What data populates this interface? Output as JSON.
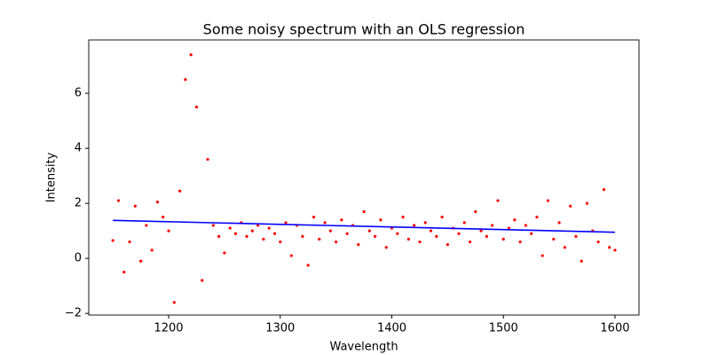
{
  "chart_data": {
    "type": "scatter",
    "title": "Some noisy spectrum with an OLS regression",
    "xlabel": "Wavelength",
    "ylabel": "Intensity",
    "xlim": [
      1128.4,
      1621.5
    ],
    "ylim": [
      -2.06,
      7.94
    ],
    "xticks": [
      1200,
      1300,
      1400,
      1500,
      1600
    ],
    "yticks": [
      {
        "value": -2,
        "label": "−2"
      },
      0,
      2,
      4,
      6
    ],
    "series": [
      {
        "type": "scatter",
        "color": "#ff0000",
        "x": [
          1150,
          1155,
          1160,
          1165,
          1170,
          1175,
          1180,
          1185,
          1190,
          1195,
          1200,
          1205,
          1210,
          1215,
          1220,
          1225,
          1230,
          1235,
          1240,
          1245,
          1250,
          1255,
          1260,
          1265,
          1270,
          1275,
          1280,
          1285,
          1290,
          1295,
          1300,
          1305,
          1310,
          1315,
          1320,
          1325,
          1330,
          1335,
          1340,
          1345,
          1350,
          1355,
          1360,
          1365,
          1370,
          1375,
          1380,
          1385,
          1390,
          1395,
          1400,
          1405,
          1410,
          1415,
          1420,
          1425,
          1430,
          1435,
          1440,
          1445,
          1450,
          1455,
          1460,
          1465,
          1470,
          1475,
          1480,
          1485,
          1490,
          1495,
          1500,
          1505,
          1510,
          1515,
          1520,
          1525,
          1530,
          1535,
          1540,
          1545,
          1550,
          1555,
          1560,
          1565,
          1570,
          1575,
          1580,
          1585,
          1590,
          1595,
          1600
        ],
        "values": [
          0.65,
          2.1,
          -0.5,
          0.6,
          1.9,
          -0.1,
          1.2,
          0.3,
          2.05,
          1.5,
          1.0,
          -1.6,
          2.45,
          6.5,
          7.4,
          5.5,
          -0.8,
          3.6,
          1.2,
          0.8,
          0.2,
          1.1,
          0.9,
          1.3,
          0.8,
          1.0,
          1.2,
          0.7,
          1.1,
          0.9,
          0.6,
          1.3,
          0.1,
          1.2,
          0.8,
          -0.25,
          1.5,
          0.7,
          1.3,
          1.0,
          0.6,
          1.4,
          0.9,
          1.2,
          0.5,
          1.7,
          1.0,
          0.8,
          1.4,
          0.4,
          1.1,
          0.9,
          1.5,
          0.7,
          1.2,
          0.6,
          1.3,
          1.0,
          0.8,
          1.5,
          0.5,
          1.1,
          0.9,
          1.3,
          0.6,
          1.7,
          1.0,
          0.8,
          1.2,
          2.1,
          0.7,
          1.1,
          1.4,
          0.6,
          1.2,
          0.9,
          1.5,
          0.1,
          2.1,
          0.7,
          1.3,
          0.4,
          1.9,
          0.8,
          -0.1,
          2.0,
          1.0,
          0.6,
          2.5,
          0.4,
          0.3
        ]
      },
      {
        "type": "line",
        "color": "#0000ff",
        "x": [
          1150,
          1600
        ],
        "values": [
          1.38,
          0.95
        ]
      }
    ]
  }
}
